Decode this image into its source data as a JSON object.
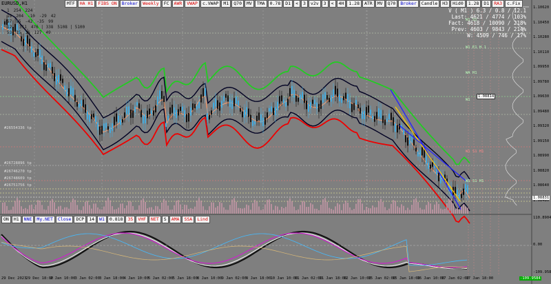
{
  "window": {
    "symbol": "EURUSD,H1"
  },
  "toolbar": {
    "buttons": [
      "MTF",
      "HA H1",
      "FIBS ON",
      "Broker",
      "Weekly",
      "FC",
      "AWR",
      "VWAP",
      "c.VWAP",
      "M1",
      "Q70",
      "MV",
      "TMA",
      "0.78",
      "D1",
      "<",
      "3",
      "v2v",
      "3",
      "<",
      "4H",
      "1.28",
      "ATR",
      "MV",
      "Q70",
      "Broker",
      "Candle",
      "H3",
      "Hid0",
      "1.28",
      "D1",
      "RA3",
      "c.Fix"
    ]
  },
  "stats": {
    "rows": [
      [
        "1",
        "254",
        "224"
      ],
      [
        "19",
        "204",
        "-10",
        "-29",
        "42"
      ],
      [
        "57",
        "95",
        "-42",
        "-35",
        "99"
      ],
      [
        "12 | 311",
        "476 | 338",
        "5108 | 5100"
      ],
      [
        "53",
        "15",
        "36",
        "127",
        "49"
      ]
    ]
  },
  "info": {
    "lines": [
      "V ( M1 ) 6.3 / 0.8 / 12.1",
      "Last: 4621 / 4774 / 103%",
      "Fact: 4618 / 10090 / 218%",
      "Prev: 4603 / 9843 / 214%",
      "W: 4509 / 746 / 17%"
    ]
  },
  "price_axis": {
    "ticks": [
      "1.10620",
      "1.10450",
      "1.10280",
      "1.10110",
      "1.09950",
      "1.09780",
      "1.09630",
      "1.09480",
      "1.09320",
      "1.09150",
      "1.08990",
      "1.08820",
      "1.08640",
      "1.08480"
    ],
    "current_price": "1.08831",
    "marker_price": "1.08814"
  },
  "osc_axis": {
    "ticks": [
      "110.8904",
      "0.00",
      "-109.9584"
    ],
    "current": "-109.9584"
  },
  "time_axis": {
    "ticks": [
      "29 Dec 2023",
      "29 Dec 18:00",
      "2 Jan 10:00",
      "3 Jan 02:00",
      "3 Jan 18:00",
      "4 Jan 10:00",
      "5 Jan 02:00",
      "5 Jan 18:00",
      "8 Jan 10:00",
      "9 Jan 02:00",
      "9 Jan 18:00",
      "10 Jan 10:00",
      "11 Jan 02:00",
      "11 Jan 18:00",
      "12 Jan 10:00",
      "15 Jan 02:00",
      "15 Jan 18:00",
      "16 Jan 10:00",
      "17 Jan 02:00",
      "17 Jan 18:00"
    ]
  },
  "levels_left": [
    "#26554336 tp",
    "#26728896 tp",
    "#26746270 tp",
    "#26748609 tp",
    "#26751756 tp"
  ],
  "levels_right": [
    "W1 S1",
    "W1 E1 H 1",
    "WA H1",
    "W1",
    "W1 S1 H1",
    "W1 S1 H1"
  ],
  "indicator_bar": {
    "buttons": [
      "ON",
      "H1",
      "NNE",
      "My.NET",
      "Close",
      "DCP",
      "14",
      "W1",
      "0.818",
      "35",
      "VHF",
      "NET",
      "S",
      "AMA",
      "SSA",
      "Lind"
    ]
  }
}
